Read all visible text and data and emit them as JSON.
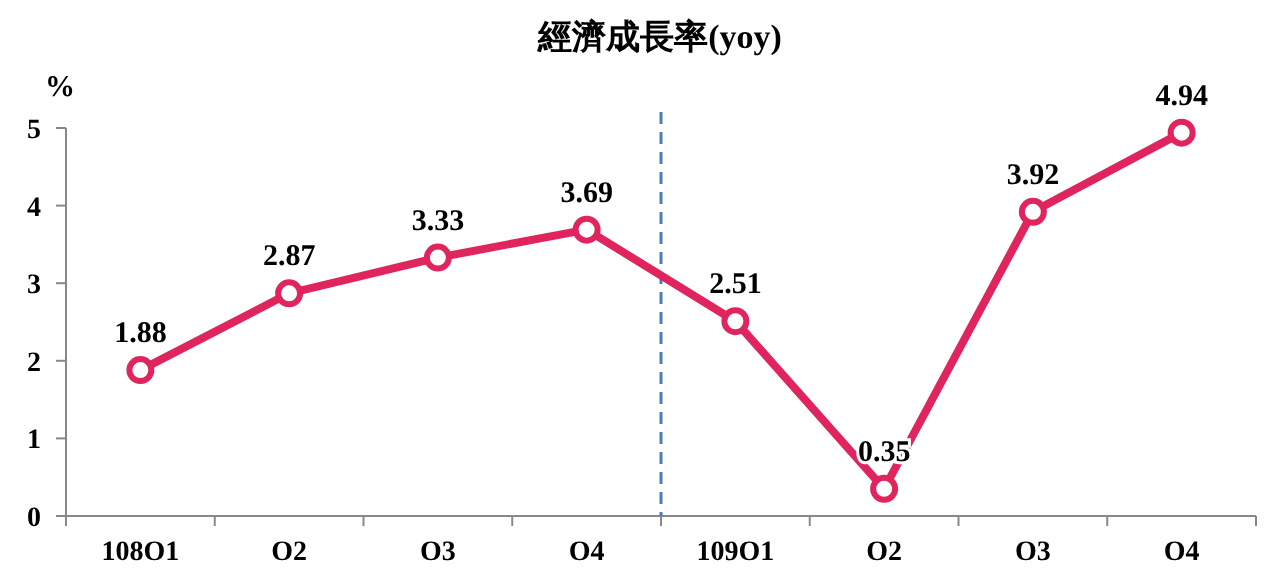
{
  "chart_data": {
    "type": "line",
    "title": "經濟成長率(yoy)",
    "ylabel": "%",
    "categories": [
      "108O1",
      "O2",
      "O3",
      "O4",
      "109O1",
      "O2",
      "O3",
      "O4"
    ],
    "series": [
      {
        "color": "#e0245e",
        "values": [
          1.88,
          2.87,
          3.33,
          3.69,
          2.51,
          0.35,
          3.92,
          4.94
        ]
      }
    ],
    "ylim": [
      0,
      5
    ],
    "yticks": [
      0,
      1,
      2,
      3,
      4,
      5
    ],
    "grid": false,
    "marker": "circle",
    "line_style": "solid",
    "data_labels": true
  }
}
